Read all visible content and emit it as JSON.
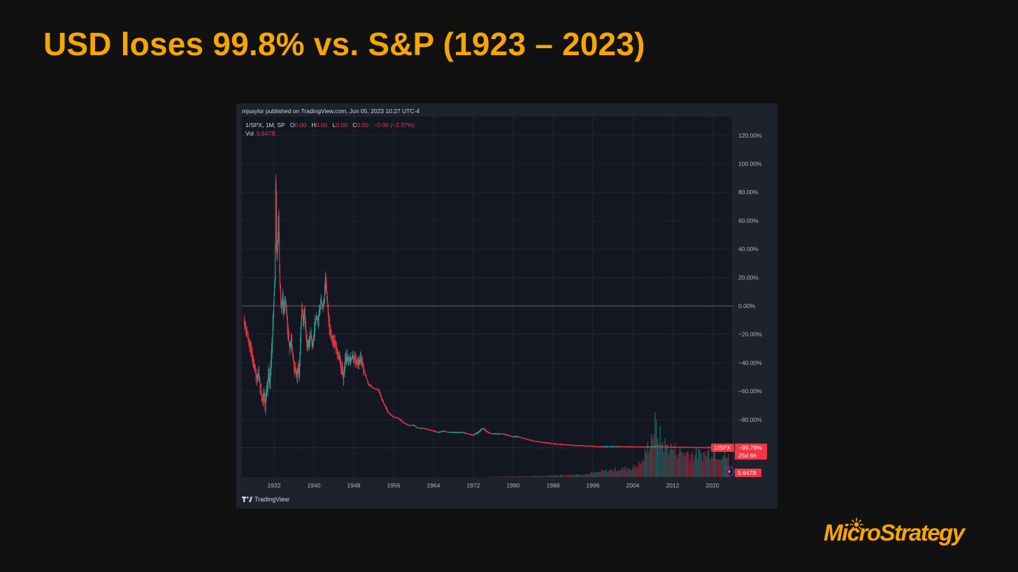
{
  "slide": {
    "title": "USD loses 99.8% vs. S&P (1923 – 2023)",
    "accent_color": "#f7a600",
    "background_color": "#111111"
  },
  "tradingview": {
    "published_text": "mjsaylor published on TradingView.com, Jun 05, 2023 10:27 UTC-4",
    "symbol_line": "1/SPX, 1M, SP",
    "ohlc": {
      "o_label": "O",
      "o_value": "0.00",
      "h_label": "H",
      "h_value": "0.00",
      "l_label": "L",
      "l_value": "0.00",
      "c_label": "C",
      "c_value": "0.00",
      "change": "−0.00 (−2.37%)"
    },
    "volume_label": "Vol",
    "volume_value": "5.647B",
    "price_tag": {
      "symbol": "1/SPX",
      "value": "−99.79%",
      "countdown": "25d 6h"
    },
    "volume_tag": "5.647B",
    "footer_brand": "TradingView",
    "footer_icon": "tradingview-logo-icon",
    "flash_icon": "lightning-icon"
  },
  "chart_data": {
    "type": "line",
    "series_style": "candlestick-with-volume",
    "x_ticks": [
      1932,
      1940,
      1948,
      1956,
      1964,
      1972,
      1980,
      1988,
      1996,
      2004,
      2012,
      2020
    ],
    "y_ticks": [
      "120.00%",
      "100.00%",
      "80.00%",
      "60.00%",
      "40.00%",
      "20.00%",
      "0.00%",
      "−20.00%",
      "−40.00%",
      "−60.00%",
      "−80.00%"
    ],
    "y_tick_values": [
      120,
      100,
      80,
      60,
      40,
      20,
      0,
      -20,
      -40,
      -60,
      -80
    ],
    "xlim": [
      1926,
      2023.5
    ],
    "ylim": [
      -120,
      130
    ],
    "baseline": 0,
    "last_value": -99.79,
    "grid": true,
    "colors": {
      "up": "#26a69a",
      "down": "#f23645",
      "grid": "#2a2e39",
      "text": "#b2b5be",
      "background": "#131722"
    },
    "price_points": [
      [
        1926.0,
        -10
      ],
      [
        1927.0,
        -25
      ],
      [
        1928.0,
        -40
      ],
      [
        1928.3,
        -46
      ],
      [
        1928.7,
        -52
      ],
      [
        1929.0,
        -47
      ],
      [
        1929.3,
        -56
      ],
      [
        1929.6,
        -64
      ],
      [
        1929.9,
        -67
      ],
      [
        1930.1,
        -62
      ],
      [
        1930.3,
        -71
      ],
      [
        1930.5,
        -63
      ],
      [
        1930.8,
        -55
      ],
      [
        1931.0,
        -47
      ],
      [
        1931.2,
        -55
      ],
      [
        1931.5,
        -38
      ],
      [
        1931.7,
        -25
      ],
      [
        1931.9,
        -9
      ],
      [
        1932.1,
        10
      ],
      [
        1932.3,
        22
      ],
      [
        1932.45,
        106
      ],
      [
        1932.6,
        30
      ],
      [
        1932.8,
        48
      ],
      [
        1933.0,
        63
      ],
      [
        1933.2,
        20
      ],
      [
        1933.4,
        5
      ],
      [
        1933.6,
        -3
      ],
      [
        1933.8,
        10
      ],
      [
        1934.0,
        -6
      ],
      [
        1934.3,
        5
      ],
      [
        1934.6,
        -6
      ],
      [
        1934.9,
        -20
      ],
      [
        1935.2,
        -30
      ],
      [
        1935.5,
        -23
      ],
      [
        1935.8,
        -35
      ],
      [
        1936.2,
        -44
      ],
      [
        1936.6,
        -50
      ],
      [
        1936.9,
        -43
      ],
      [
        1937.1,
        -48
      ],
      [
        1937.3,
        -30
      ],
      [
        1937.5,
        -12
      ],
      [
        1937.7,
        0
      ],
      [
        1937.9,
        -12
      ],
      [
        1938.2,
        -5
      ],
      [
        1938.5,
        -22
      ],
      [
        1938.8,
        -30
      ],
      [
        1939.1,
        -25
      ],
      [
        1939.4,
        -20
      ],
      [
        1939.7,
        -28
      ],
      [
        1940.0,
        -24
      ],
      [
        1940.3,
        -12
      ],
      [
        1940.6,
        -8
      ],
      [
        1940.9,
        -10
      ],
      [
        1941.2,
        -4
      ],
      [
        1941.5,
        5
      ],
      [
        1941.8,
        -2
      ],
      [
        1942.1,
        3
      ],
      [
        1942.4,
        20
      ],
      [
        1942.6,
        13
      ],
      [
        1942.9,
        -5
      ],
      [
        1943.2,
        -14
      ],
      [
        1943.5,
        -21
      ],
      [
        1943.8,
        -23
      ],
      [
        1944.1,
        -25
      ],
      [
        1944.5,
        -29
      ],
      [
        1944.9,
        -33
      ],
      [
        1945.3,
        -40
      ],
      [
        1945.7,
        -45
      ],
      [
        1946.0,
        -50
      ],
      [
        1946.3,
        -39
      ],
      [
        1946.7,
        -35
      ],
      [
        1947.0,
        -39
      ],
      [
        1947.5,
        -37
      ],
      [
        1948.0,
        -36
      ],
      [
        1948.5,
        -39
      ],
      [
        1949.0,
        -41
      ],
      [
        1949.5,
        -37
      ],
      [
        1950.0,
        -44
      ],
      [
        1951.0,
        -55
      ],
      [
        1952.0,
        -58
      ],
      [
        1953.0,
        -59
      ],
      [
        1954.0,
        -68
      ],
      [
        1955.0,
        -75
      ],
      [
        1956.0,
        -78
      ],
      [
        1957.0,
        -79
      ],
      [
        1958.0,
        -82
      ],
      [
        1959.0,
        -84
      ],
      [
        1960.0,
        -84
      ],
      [
        1961.0,
        -86
      ],
      [
        1962.0,
        -86
      ],
      [
        1963.0,
        -87
      ],
      [
        1964.0,
        -88
      ],
      [
        1965.0,
        -89
      ],
      [
        1966.0,
        -88
      ],
      [
        1967.0,
        -89
      ],
      [
        1968.0,
        -89
      ],
      [
        1969.0,
        -89
      ],
      [
        1970.0,
        -89
      ],
      [
        1971.0,
        -90
      ],
      [
        1972.0,
        -91
      ],
      [
        1973.0,
        -89
      ],
      [
        1974.0,
        -86
      ],
      [
        1975.0,
        -89
      ],
      [
        1976.0,
        -90
      ],
      [
        1977.0,
        -90
      ],
      [
        1978.0,
        -90
      ],
      [
        1979.0,
        -91
      ],
      [
        1980.0,
        -92
      ],
      [
        1981.0,
        -92
      ],
      [
        1982.0,
        -93
      ],
      [
        1984.0,
        -95
      ],
      [
        1986.0,
        -96
      ],
      [
        1988.0,
        -97
      ],
      [
        1990.0,
        -97.5
      ],
      [
        1992.0,
        -98
      ],
      [
        1995.0,
        -98.6
      ],
      [
        1998.0,
        -99.1
      ],
      [
        2001.0,
        -99.0
      ],
      [
        2004.0,
        -99.1
      ],
      [
        2007.0,
        -99.2
      ],
      [
        2009.0,
        -99.0
      ],
      [
        2012.0,
        -99.3
      ],
      [
        2015.0,
        -99.5
      ],
      [
        2018.0,
        -99.6
      ],
      [
        2021.0,
        -99.75
      ],
      [
        2023.4,
        -99.79
      ]
    ],
    "volume_profile": [
      [
        1926.0,
        0
      ],
      [
        1975.0,
        0.5
      ],
      [
        1985.0,
        2
      ],
      [
        1995.0,
        6
      ],
      [
        2000.0,
        14
      ],
      [
        2004.0,
        18
      ],
      [
        2006.0,
        30
      ],
      [
        2008.5,
        100
      ],
      [
        2010.0,
        65
      ],
      [
        2012.0,
        55
      ],
      [
        2014.0,
        48
      ],
      [
        2016.0,
        45
      ],
      [
        2018.0,
        44
      ],
      [
        2020.0,
        52
      ],
      [
        2021.0,
        46
      ],
      [
        2023.4,
        38
      ]
    ]
  }
}
